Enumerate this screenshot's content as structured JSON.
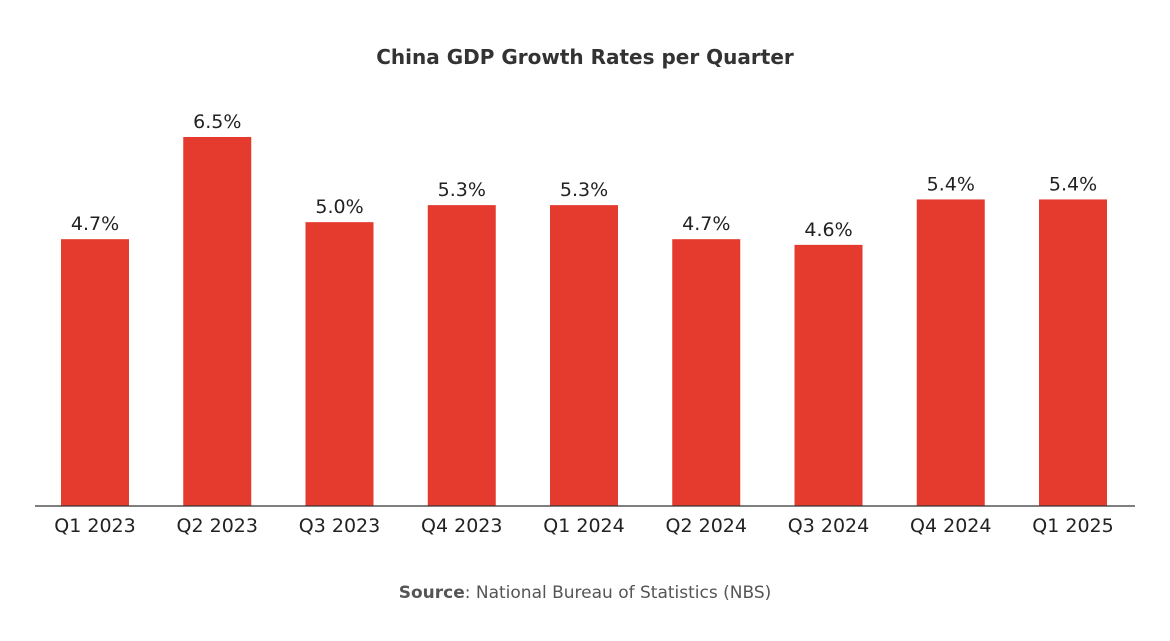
{
  "chart_data": {
    "type": "bar",
    "title": "China GDP Growth Rates per Quarter",
    "categories": [
      "Q1 2023",
      "Q2 2023",
      "Q3 2023",
      "Q4 2023",
      "Q1 2024",
      "Q2 2024",
      "Q3 2024",
      "Q4 2024",
      "Q1 2025"
    ],
    "values": [
      4.7,
      6.5,
      5.0,
      5.3,
      5.3,
      4.7,
      4.6,
      5.4,
      5.4
    ],
    "data_labels": [
      "4.7%",
      "6.5%",
      "5.0%",
      "5.3%",
      "5.3%",
      "4.7%",
      "4.6%",
      "5.4%",
      "5.4%"
    ],
    "xlabel": "",
    "ylabel": "",
    "ylim": [
      0,
      6.5
    ],
    "grid": false,
    "bar_color": "#e53b2f",
    "source_label": "Source",
    "source_text": ": National Bureau of Statistics (NBS)"
  }
}
